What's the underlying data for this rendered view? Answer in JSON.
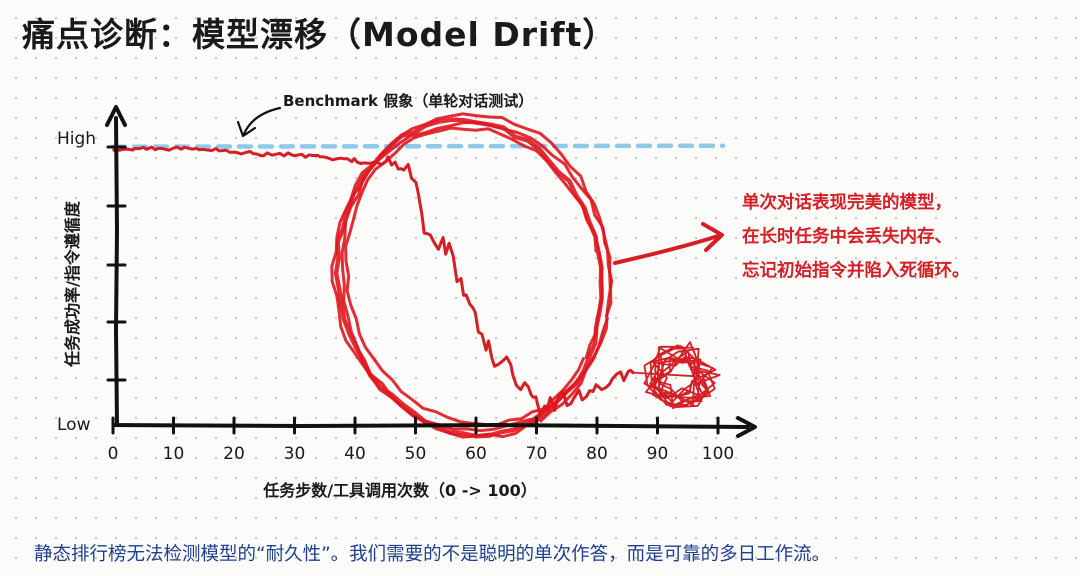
{
  "title": "痛点诊断：模型漂移（Model Drift）",
  "caption": "静态排行榜无法检测模型的“耐久性”。我们需要的不是聪明的单次作答，而是可靠的多日工作流。",
  "chart_data": {
    "type": "line",
    "xlabel": "任务步数/工具调用次数（0 -> 100）",
    "ylabel": "任务成功率/指令遵循度",
    "xlim": [
      0,
      100
    ],
    "x_ticks": [
      "0",
      "10",
      "20",
      "30",
      "40",
      "50",
      "60",
      "70",
      "80",
      "90",
      "100"
    ],
    "y_high_label": "High",
    "y_low_label": "Low",
    "benchmark": {
      "label": "Benchmark 假象（单轮对话测试）",
      "level": 0.95,
      "color": "#8ec9ea"
    },
    "series": [
      {
        "color": "#d51f26",
        "x": [
          0,
          5,
          10,
          15,
          20,
          25,
          30,
          35,
          40,
          42,
          45,
          47,
          50,
          52,
          55,
          58,
          60,
          62,
          65,
          68,
          70,
          73,
          77,
          80,
          84,
          86
        ],
        "y": [
          0.95,
          0.95,
          0.95,
          0.95,
          0.94,
          0.93,
          0.93,
          0.92,
          0.91,
          0.9,
          0.9,
          0.88,
          0.85,
          0.65,
          0.62,
          0.45,
          0.35,
          0.25,
          0.2,
          0.12,
          0.06,
          0.08,
          0.12,
          0.12,
          0.17,
          0.18
        ]
      }
    ],
    "tangle_after_x": 86,
    "highlight_circle_center_x": 60,
    "annotation": {
      "lines": [
        "单次对话表现完美的模型，",
        "在长时任务中会丢失内存、",
        "忘记初始指令并陷入死循环。"
      ],
      "color": "#d51f26"
    }
  }
}
